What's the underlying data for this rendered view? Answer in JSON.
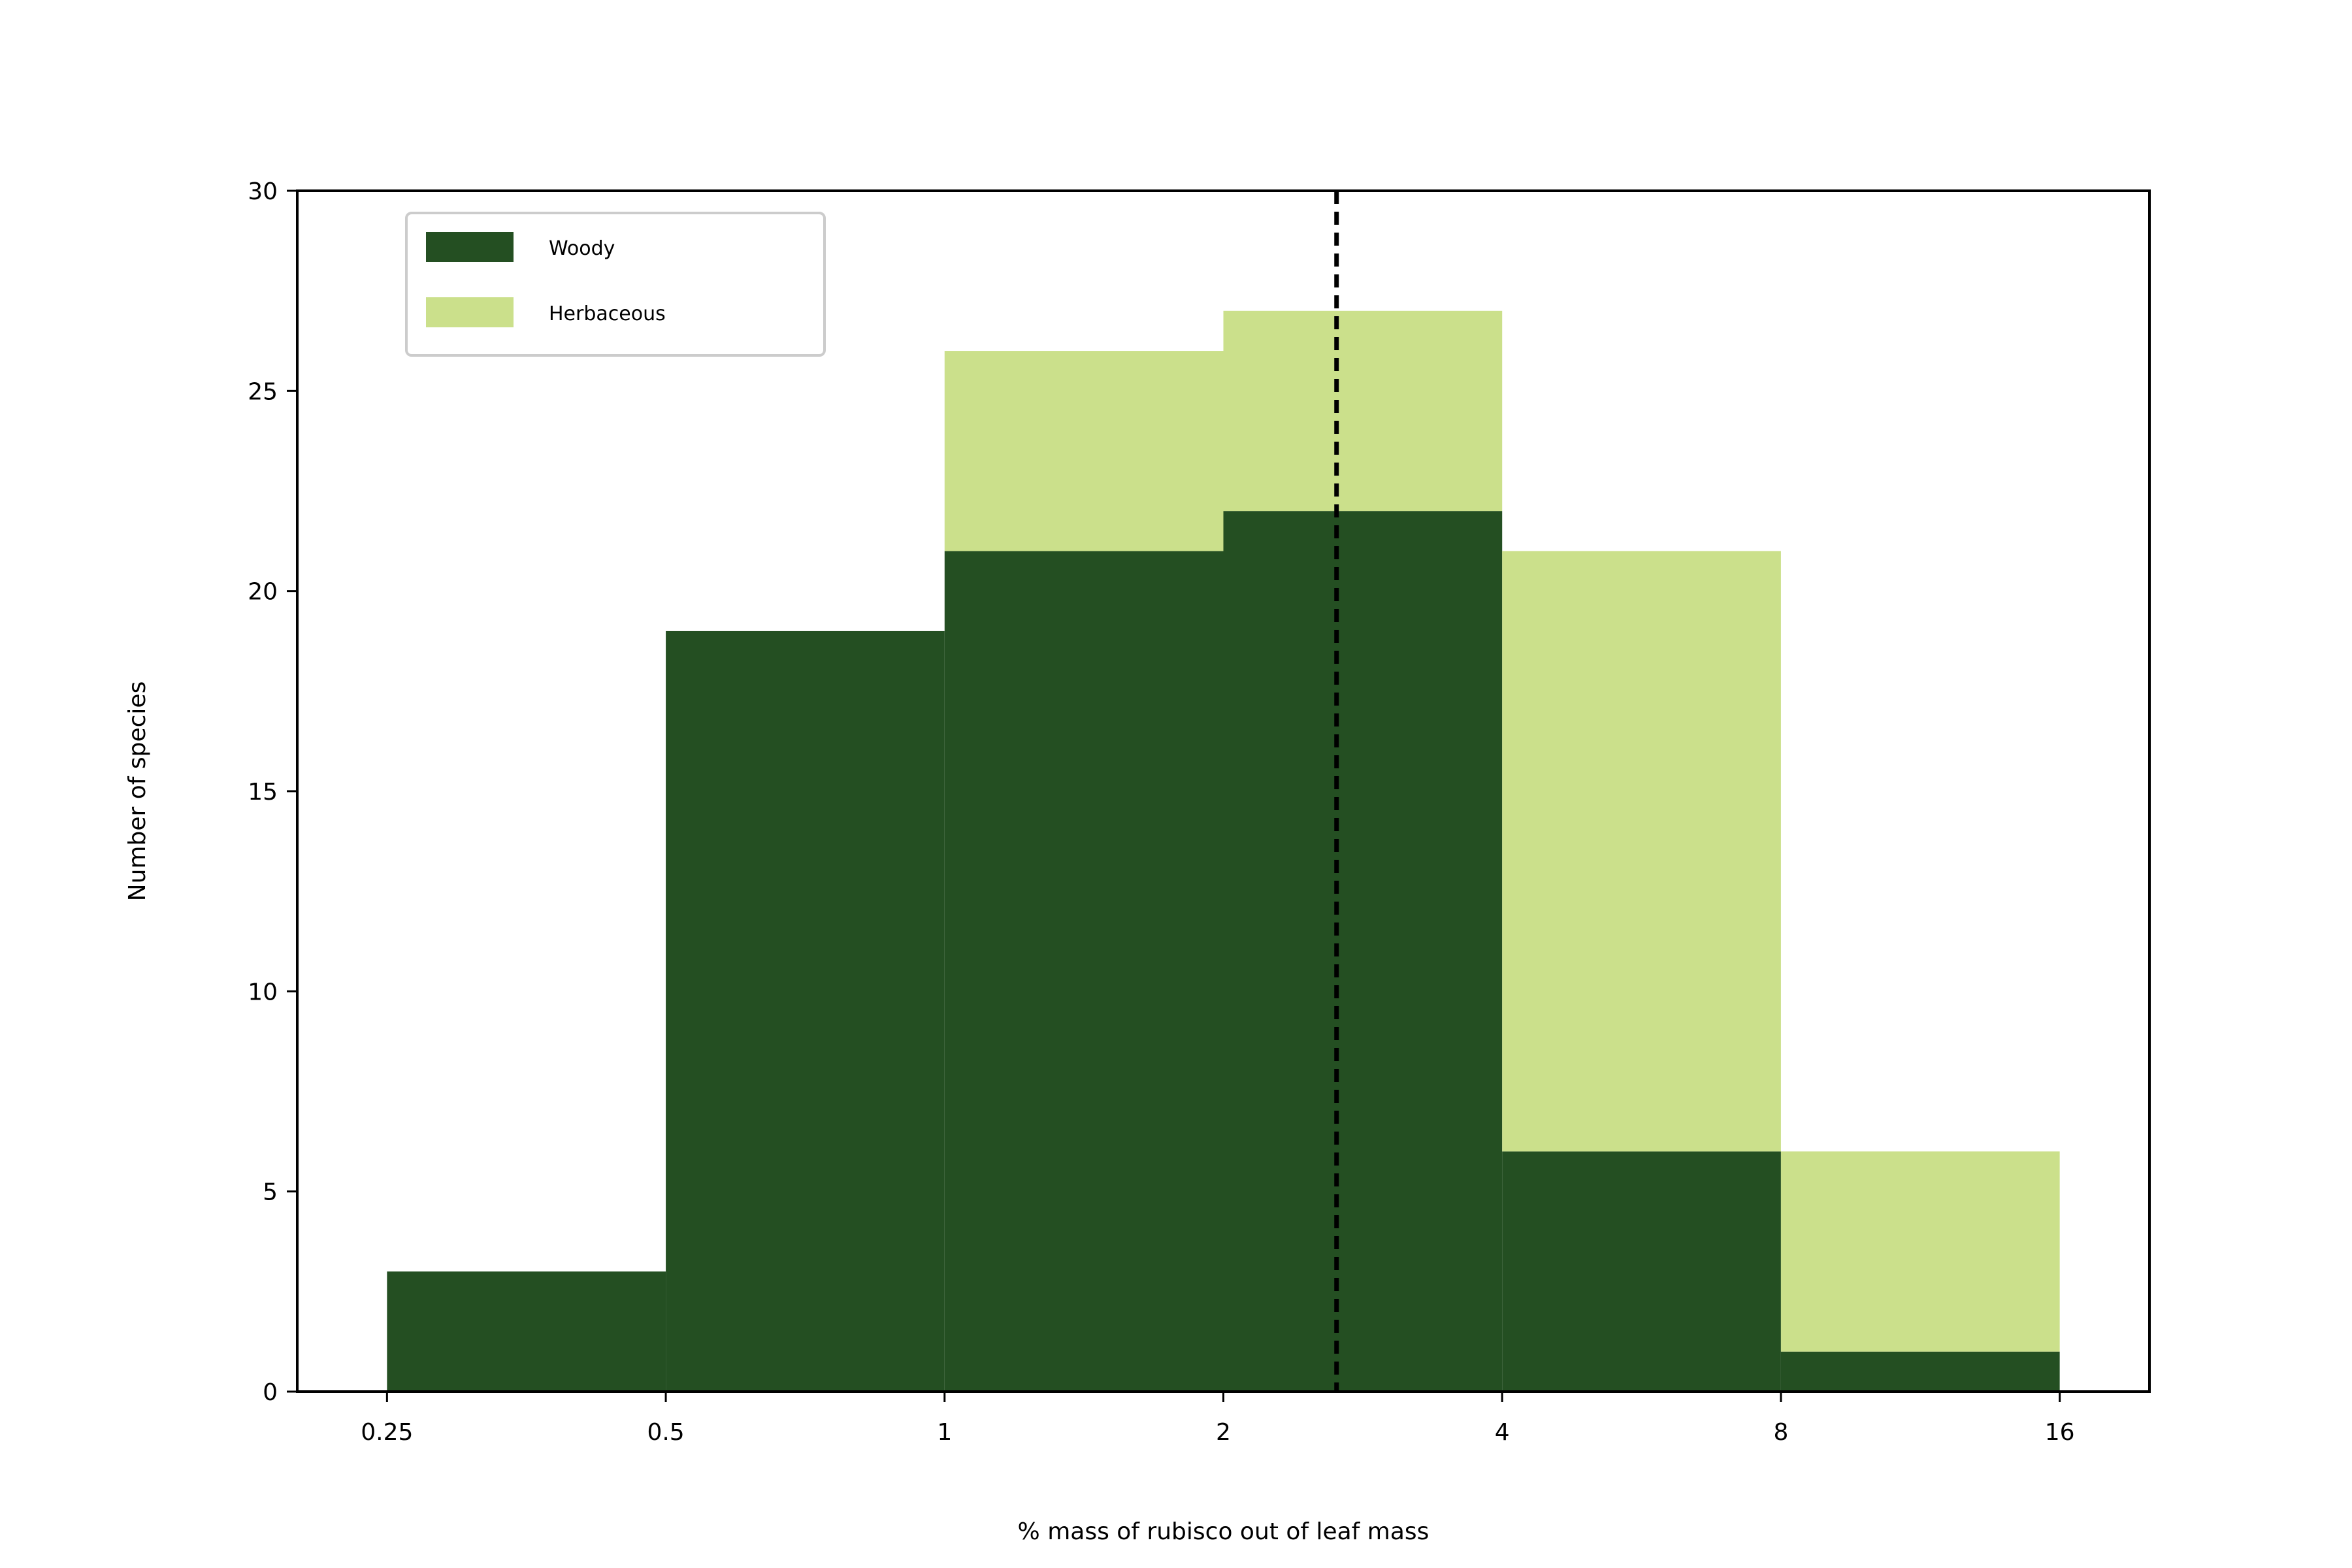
{
  "chart_data": {
    "type": "bar",
    "subtype": "stacked-histogram",
    "xscale": "log2",
    "bin_edges": [
      0.25,
      0.5,
      1,
      2,
      4,
      8,
      16
    ],
    "xticks": [
      "0.25",
      "0.5",
      "1",
      "2",
      "4",
      "8",
      "16"
    ],
    "xlim": [
      0.2,
      20
    ],
    "yticks": [
      "0",
      "5",
      "10",
      "15",
      "20",
      "25",
      "30"
    ],
    "ylim": [
      0,
      30
    ],
    "xlabel": "% mass of rubisco out of leaf mass",
    "ylabel": "Number of species",
    "series": [
      {
        "name": "Woody",
        "color": "#244f22",
        "values": [
          3,
          19,
          21,
          22,
          6,
          1
        ]
      },
      {
        "name": "Herbaceous",
        "color": "#cbe08b",
        "values": [
          0,
          0,
          5,
          5,
          15,
          5
        ]
      }
    ],
    "reference_line": {
      "x": 2.65,
      "style": "dashed",
      "color": "#000000"
    },
    "legend": {
      "position": "top-left"
    },
    "grid": false
  }
}
